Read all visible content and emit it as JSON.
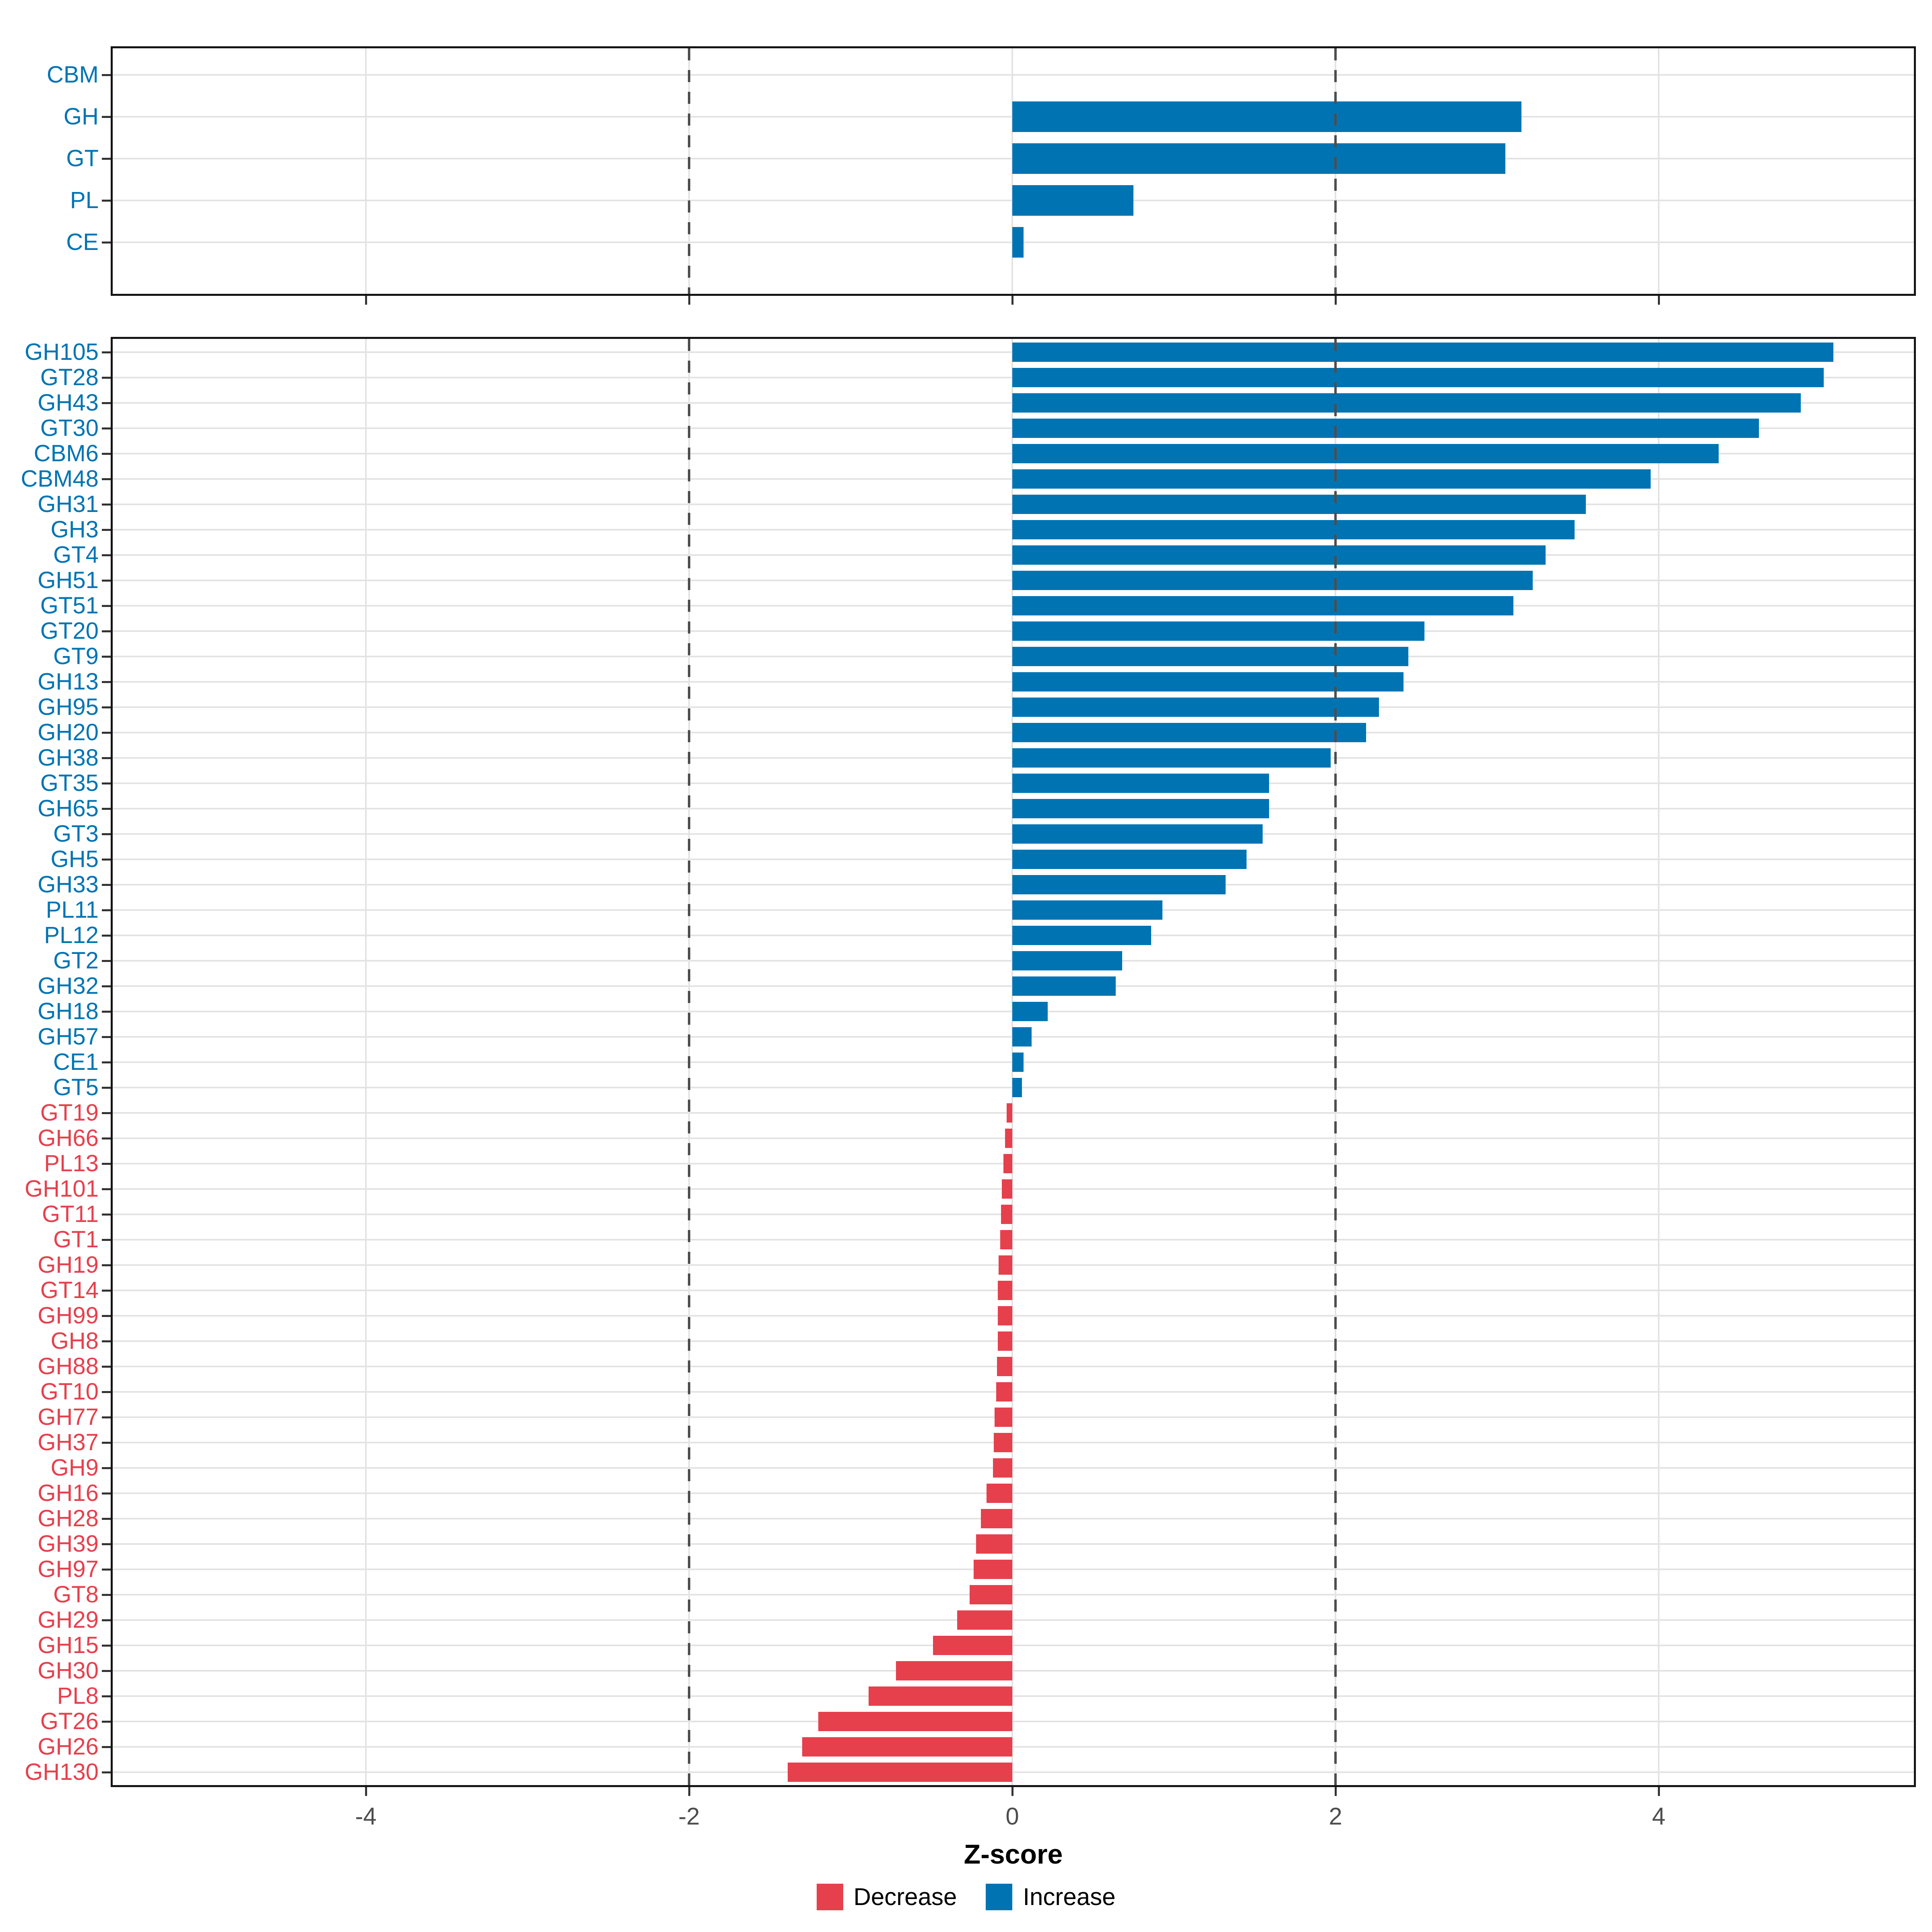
{
  "chart_data": [
    {
      "type": "bar",
      "orientation": "horizontal",
      "panel": "cazyme-classes",
      "categories": [
        "CBM",
        "GH",
        "GT",
        "PL",
        "CE"
      ],
      "values": [
        0,
        3.15,
        3.05,
        0.75,
        0.07
      ],
      "xlim": [
        -5.58,
        5.59
      ],
      "grid": "major-x and row lines",
      "note": "bars colored by sign: positive=increase, negative=decrease"
    },
    {
      "type": "bar",
      "orientation": "horizontal",
      "panel": "cazyme-families",
      "categories": [
        "GH105",
        "GT28",
        "GH43",
        "GT30",
        "CBM6",
        "CBM48",
        "GH31",
        "GH3",
        "GT4",
        "GH51",
        "GT51",
        "GT20",
        "GT9",
        "GH13",
        "GH95",
        "GH20",
        "GH38",
        "GT35",
        "GH65",
        "GT3",
        "GH5",
        "GH33",
        "PL11",
        "PL12",
        "GT2",
        "GH32",
        "GH18",
        "GH57",
        "CE1",
        "GT5",
        "GT19",
        "GH66",
        "PL13",
        "GH101",
        "GT11",
        "GT1",
        "GH19",
        "GT14",
        "GH99",
        "GH8",
        "GH88",
        "GT10",
        "GH77",
        "GH37",
        "GH9",
        "GH16",
        "GH28",
        "GH39",
        "GH97",
        "GT8",
        "GH29",
        "GH15",
        "GH30",
        "PL8",
        "GT26",
        "GH26",
        "GH130"
      ],
      "values": [
        5.08,
        5.02,
        4.88,
        4.62,
        4.37,
        3.95,
        3.55,
        3.48,
        3.3,
        3.22,
        3.1,
        2.55,
        2.45,
        2.42,
        2.27,
        2.19,
        1.97,
        1.59,
        1.59,
        1.55,
        1.45,
        1.32,
        0.93,
        0.86,
        0.68,
        0.64,
        0.22,
        0.12,
        0.07,
        0.06,
        -0.035,
        -0.045,
        -0.055,
        -0.065,
        -0.07,
        -0.075,
        -0.085,
        -0.09,
        -0.09,
        -0.09,
        -0.095,
        -0.1,
        -0.11,
        -0.115,
        -0.12,
        -0.16,
        -0.195,
        -0.225,
        -0.24,
        -0.265,
        -0.34,
        -0.49,
        -0.72,
        -0.89,
        -1.2,
        -1.3,
        -1.39
      ],
      "xlim": [
        -5.58,
        5.59
      ],
      "grid": "major-x and row lines"
    }
  ],
  "axis": {
    "xlabel": "Z-score",
    "tick_values": [
      -4,
      -2,
      0,
      2,
      4
    ],
    "tick_labels": [
      "-4",
      "-2",
      "0",
      "2",
      "4"
    ],
    "dashed_reference_lines": [
      -2,
      2
    ]
  },
  "legend": {
    "position": "bottom-center",
    "items": [
      {
        "label": "Decrease",
        "color": "#E6404D"
      },
      {
        "label": "Increase",
        "color": "#0074B3"
      }
    ]
  },
  "colors": {
    "increase": "#0074B3",
    "decrease": "#E6404D",
    "grid": "#E3E3E3",
    "dashed_line": "#4D4D4D",
    "axis_text": "#4D4D4D",
    "panel_border": "#141414",
    "background": "#ffffff"
  }
}
